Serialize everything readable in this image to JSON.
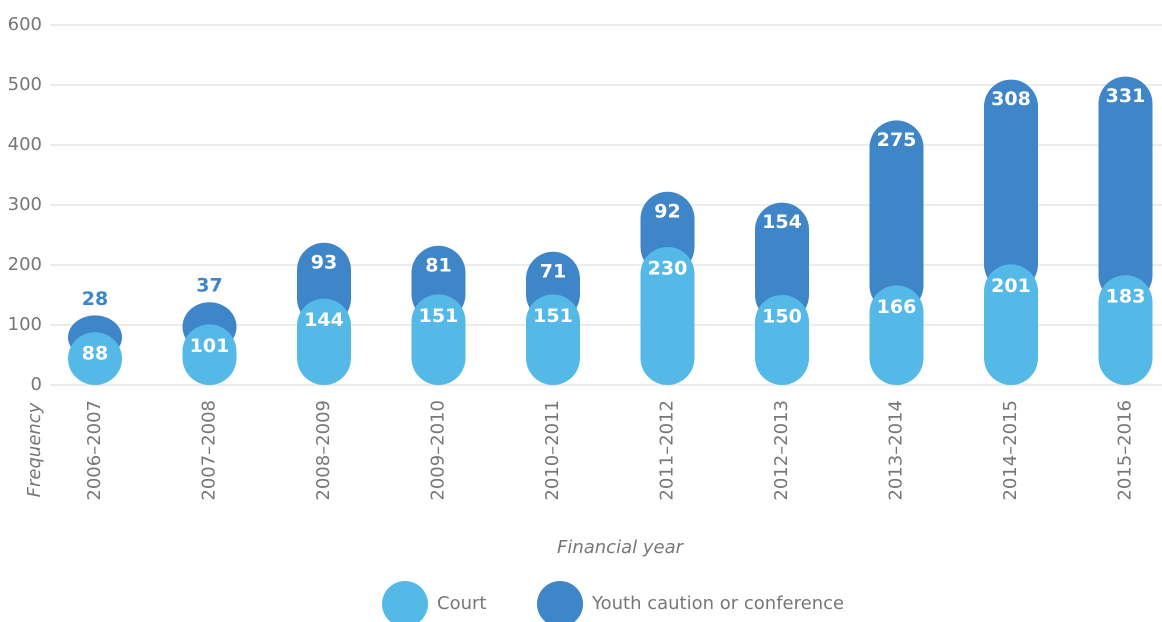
{
  "chart_data": {
    "type": "stacked_bar",
    "categories": [
      "2006–2007",
      "2007–2008",
      "2008–2009",
      "2009–2010",
      "2010–2011",
      "2011–2012",
      "2012–2013",
      "2013–2014",
      "2014–2015",
      "2015–2016"
    ],
    "series": [
      {
        "name": "Court",
        "color": "#55b9e8",
        "values": [
          88,
          101,
          144,
          151,
          151,
          230,
          150,
          166,
          201,
          183
        ]
      },
      {
        "name": "Youth caution or conference",
        "color": "#3f86c8",
        "values": [
          28,
          37,
          93,
          81,
          71,
          92,
          154,
          275,
          308,
          331
        ]
      }
    ],
    "xlabel": "Financial year",
    "ylabel": "Frequency",
    "ylim": [
      0,
      600
    ],
    "yticks": [
      0,
      100,
      200,
      300,
      400,
      500,
      600
    ],
    "grid": true,
    "legend": "bottom"
  }
}
